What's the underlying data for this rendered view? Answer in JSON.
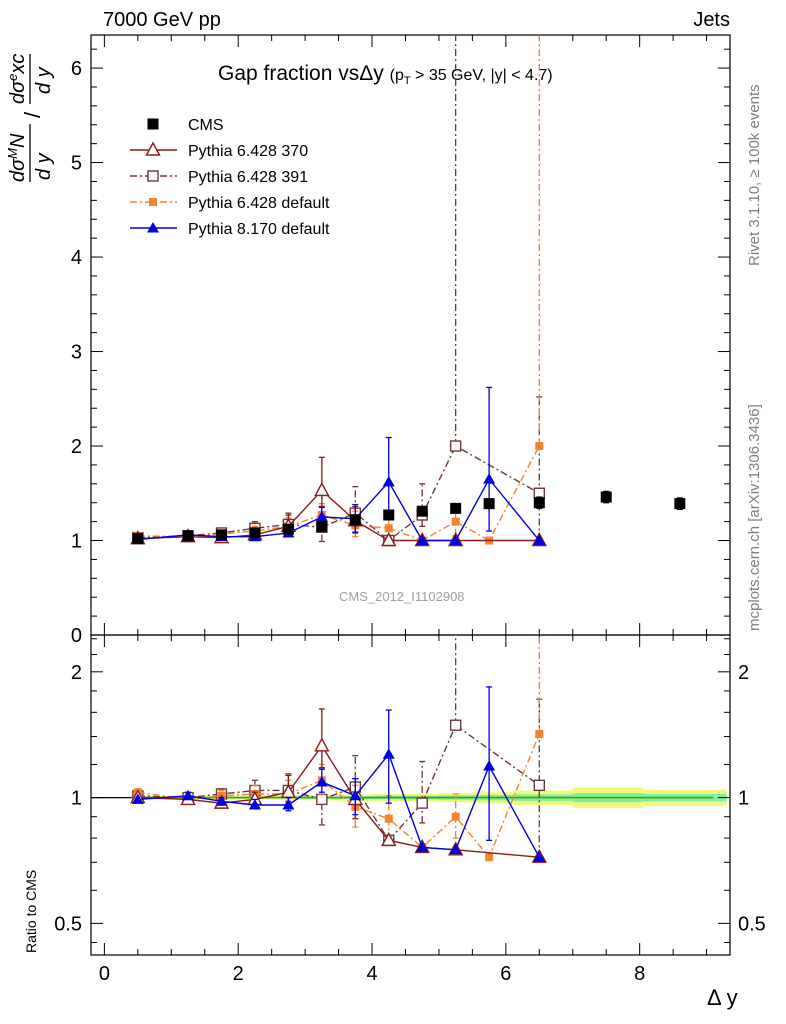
{
  "header": {
    "left": "7000 GeV pp",
    "right": "Jets"
  },
  "side_texts": {
    "version": "Rivet 3.1.10, ≥ 100k events",
    "source": "mcplots.cern.ch [arXiv:1306.3436]"
  },
  "watermark": "CMS_2012_I1102908",
  "colors": {
    "cms": "#000000",
    "p370": "#8b1a1a",
    "p391": "#6b3a3a",
    "p6def": "#f5822d",
    "p8def": "#0000dd",
    "band_inner": "#7ff0a0",
    "band_outer": "#f2f87a",
    "refline": "#4aa000"
  },
  "chart_data": [
    {
      "type": "line",
      "title": "Gap fraction vsΔy",
      "title_cut_parts": [
        "(p",
        "T",
        " > 35 GeV, |y| < 4.7)"
      ],
      "ylabel": "dσ^M N / dy / dσ^e xc / dy",
      "ylim": [
        0,
        6.35
      ],
      "y_ticks": [
        0,
        1,
        2,
        3,
        4,
        5,
        6
      ],
      "y_tick_labels": [
        "0",
        "1",
        "2",
        "3",
        "4",
        "5",
        "6"
      ],
      "xlim": [
        -0.2,
        9.35
      ],
      "legend_position": "top-left",
      "series": [
        {
          "key": "cms",
          "name": "CMS",
          "marker": "square-filled",
          "line": "none",
          "x": [
            0.5,
            1.25,
            1.75,
            2.25,
            2.75,
            3.25,
            3.75,
            4.25,
            4.75,
            5.25,
            5.75,
            6.5,
            7.5,
            8.6
          ],
          "y": [
            1.02,
            1.05,
            1.06,
            1.08,
            1.12,
            1.15,
            1.22,
            1.27,
            1.31,
            1.34,
            1.39,
            1.4,
            1.46,
            1.39
          ],
          "yerr": [
            0.01,
            0.01,
            0.01,
            0.01,
            0.02,
            0.02,
            0.03,
            0.03,
            0.03,
            0.04,
            0.05,
            0.06,
            0.06,
            0.06
          ]
        },
        {
          "key": "p370",
          "name": "Pythia 6.428 370",
          "marker": "triangle-open",
          "line": "solid",
          "x": [
            0.5,
            1.25,
            1.75,
            2.25,
            2.75,
            3.25,
            3.75,
            4.25,
            4.75,
            5.25,
            6.5
          ],
          "y": [
            1.02,
            1.04,
            1.03,
            1.06,
            1.15,
            1.53,
            1.21,
            1.0,
            1.0,
            1.0,
            1.0
          ],
          "ylo": [
            0.0,
            0.03,
            0.02,
            0.04,
            0.07,
            0.17,
            0.12,
            0.0,
            0.0,
            0.0,
            0.0
          ],
          "yhi": [
            0.0,
            0.03,
            0.02,
            0.04,
            0.12,
            0.35,
            0.15,
            0.0,
            0.0,
            0.0,
            0.0
          ]
        },
        {
          "key": "p391",
          "name": "Pythia 6.428 391",
          "marker": "square-open",
          "line": "dash-dot",
          "x": [
            0.5,
            1.25,
            1.75,
            2.25,
            2.75,
            3.25,
            3.75,
            4.25,
            4.75,
            5.25,
            6.5
          ],
          "y": [
            1.03,
            1.05,
            1.08,
            1.13,
            1.17,
            1.14,
            1.29,
            1.0,
            1.27,
            2.0,
            1.5
          ],
          "ylo": [
            0.0,
            0.02,
            0.03,
            0.06,
            0.08,
            0.15,
            0.15,
            0.0,
            0.12,
            0.0,
            0.5
          ],
          "yhi": [
            0.0,
            0.02,
            0.03,
            0.07,
            0.12,
            0.22,
            0.28,
            0.0,
            0.33,
            5.0,
            1.02
          ],
          "clip_high": [
            false,
            false,
            false,
            false,
            false,
            false,
            false,
            false,
            false,
            true,
            false
          ]
        },
        {
          "key": "p6def",
          "name": "Pythia 6.428 default",
          "marker": "square-filled-small",
          "line": "dash-dot",
          "x": [
            0.5,
            1.25,
            1.75,
            2.25,
            2.75,
            3.25,
            3.75,
            4.25,
            4.75,
            5.25,
            5.75,
            6.5
          ],
          "y": [
            1.05,
            1.04,
            1.07,
            1.1,
            1.15,
            1.27,
            1.16,
            1.13,
            1.0,
            1.2,
            1.0,
            2.0
          ],
          "ylo": [
            0.0,
            0.02,
            0.03,
            0.05,
            0.07,
            0.1,
            0.12,
            0.12,
            0.0,
            0.15,
            0.0,
            0.0
          ],
          "yhi": [
            0.0,
            0.02,
            0.03,
            0.05,
            0.09,
            0.12,
            0.15,
            0.15,
            0.0,
            0.18,
            0.0,
            5.0
          ],
          "clip_high": [
            false,
            false,
            false,
            false,
            false,
            false,
            false,
            false,
            false,
            false,
            false,
            true
          ]
        },
        {
          "key": "p8def",
          "name": "Pythia 8.170 default",
          "marker": "triangle-filled",
          "line": "solid",
          "x": [
            0.5,
            1.25,
            1.75,
            2.25,
            2.75,
            3.25,
            3.75,
            4.25,
            4.75,
            5.25,
            5.75,
            6.5
          ],
          "y": [
            1.01,
            1.06,
            1.04,
            1.04,
            1.08,
            1.25,
            1.23,
            1.62,
            1.0,
            1.0,
            1.65,
            1.0
          ],
          "ylo": [
            0.0,
            0.03,
            0.03,
            0.03,
            0.04,
            0.08,
            0.15,
            0.4,
            0.0,
            0.0,
            0.55,
            0.0
          ],
          "yhi": [
            0.0,
            0.03,
            0.03,
            0.03,
            0.05,
            0.1,
            0.15,
            0.47,
            0.0,
            0.0,
            0.97,
            0.0
          ]
        }
      ]
    },
    {
      "type": "line",
      "xlabel": "Δ y",
      "ylabel": "Ratio to CMS",
      "ylim": [
        0.42,
        2.45
      ],
      "y_scale": "log",
      "y_ticks": [
        0.5,
        1,
        2
      ],
      "y_tick_labels": [
        "0.5",
        "1",
        "2"
      ],
      "xlim": [
        -0.2,
        9.35
      ],
      "x_ticks": [
        0,
        2,
        4,
        6,
        8
      ],
      "x_tick_labels": [
        "0",
        "2",
        "4",
        "6",
        "8"
      ],
      "band": {
        "x": [
          0.5,
          1.25,
          1.75,
          2.25,
          2.75,
          3.25,
          3.75,
          4.25,
          4.75,
          5.25,
          5.75,
          6.5,
          7.5,
          8.6
        ],
        "inner": [
          0.005,
          0.005,
          0.005,
          0.006,
          0.006,
          0.007,
          0.008,
          0.01,
          0.01,
          0.012,
          0.015,
          0.018,
          0.025,
          0.02
        ],
        "outer": [
          0.01,
          0.01,
          0.01,
          0.012,
          0.013,
          0.015,
          0.018,
          0.02,
          0.022,
          0.025,
          0.03,
          0.04,
          0.055,
          0.045
        ]
      },
      "series": [
        {
          "key": "p370",
          "name": "Pythia 6.428 370",
          "x": [
            0.5,
            1.25,
            1.75,
            2.25,
            2.75,
            3.25,
            3.75,
            4.25,
            4.75,
            5.25,
            6.5
          ],
          "y": [
            1.0,
            0.99,
            0.97,
            0.99,
            1.03,
            1.33,
            0.99,
            0.79,
            0.76,
            0.75,
            0.72
          ],
          "ylo": [
            0.0,
            0.02,
            0.02,
            0.03,
            0.05,
            0.15,
            0.1,
            0.0,
            0.0,
            0.0,
            0.0
          ],
          "yhi": [
            0.0,
            0.02,
            0.02,
            0.04,
            0.1,
            0.3,
            0.12,
            0.0,
            0.0,
            0.0,
            0.0
          ]
        },
        {
          "key": "p391",
          "name": "Pythia 6.428 391",
          "x": [
            0.5,
            1.25,
            1.75,
            2.25,
            2.75,
            3.25,
            3.75,
            4.25,
            4.75,
            5.25,
            6.5
          ],
          "y": [
            1.01,
            1.0,
            1.02,
            1.04,
            1.04,
            0.99,
            1.06,
            0.79,
            0.97,
            1.49,
            1.07
          ],
          "ylo": [
            0.0,
            0.02,
            0.03,
            0.05,
            0.07,
            0.13,
            0.12,
            0.0,
            0.1,
            0.0,
            0.35
          ],
          "yhi": [
            0.0,
            0.02,
            0.03,
            0.06,
            0.1,
            0.18,
            0.2,
            0.0,
            0.25,
            5.0,
            0.65
          ],
          "clip_high": [
            false,
            false,
            false,
            false,
            false,
            false,
            false,
            false,
            false,
            true,
            false
          ]
        },
        {
          "key": "p6def",
          "name": "Pythia 6.428 default",
          "x": [
            0.5,
            1.25,
            1.75,
            2.25,
            2.75,
            3.25,
            3.75,
            4.25,
            4.75,
            5.25,
            5.75,
            6.5
          ],
          "y": [
            1.03,
            0.99,
            1.01,
            1.02,
            1.02,
            1.1,
            0.95,
            0.89,
            0.76,
            0.9,
            0.72,
            1.42
          ],
          "ylo": [
            0.0,
            0.02,
            0.03,
            0.04,
            0.06,
            0.08,
            0.1,
            0.1,
            0.0,
            0.1,
            0.0,
            0.0
          ],
          "yhi": [
            0.0,
            0.02,
            0.03,
            0.05,
            0.08,
            0.1,
            0.12,
            0.12,
            0.0,
            0.12,
            0.0,
            5.0
          ],
          "clip_high": [
            false,
            false,
            false,
            false,
            false,
            false,
            false,
            false,
            false,
            false,
            false,
            true
          ]
        },
        {
          "key": "p8def",
          "name": "Pythia 8.170 default",
          "x": [
            0.5,
            1.25,
            1.75,
            2.25,
            2.75,
            3.25,
            3.75,
            4.25,
            4.75,
            5.25,
            5.75,
            6.5
          ],
          "y": [
            0.99,
            1.01,
            0.98,
            0.96,
            0.96,
            1.09,
            1.01,
            1.27,
            0.76,
            0.75,
            1.19,
            0.72
          ],
          "ylo": [
            0.0,
            0.02,
            0.02,
            0.02,
            0.03,
            0.06,
            0.1,
            0.3,
            0.0,
            0.0,
            0.4,
            0.0
          ],
          "yhi": [
            0.0,
            0.02,
            0.02,
            0.03,
            0.04,
            0.08,
            0.1,
            0.35,
            0.0,
            0.0,
            0.65,
            0.0
          ]
        }
      ]
    }
  ]
}
